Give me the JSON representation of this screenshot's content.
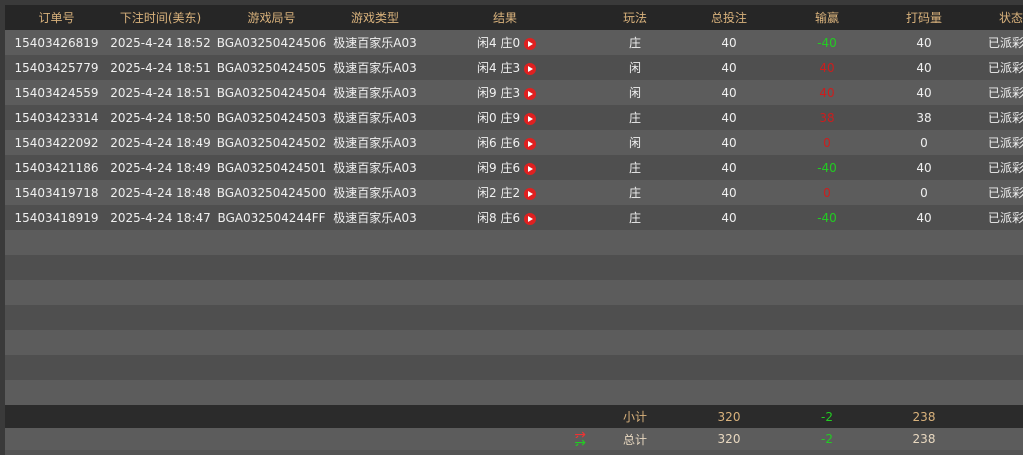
{
  "headers": [
    "订单号",
    "下注时间(美东)",
    "游戏局号",
    "游戏类型",
    "结果",
    "玩法",
    "总投注",
    "输赢",
    "打码量",
    "状态"
  ],
  "rows": [
    {
      "order": "15403426819",
      "time": "2025-4-24 18:52",
      "round": "BGA03250424506",
      "game": "极速百家乐A03",
      "result": "闲4 庄0",
      "bet_type": "庄",
      "total_bet": "40",
      "win_loss": "-40",
      "win_color": "green",
      "turnover": "40",
      "status": "已派彩"
    },
    {
      "order": "15403425779",
      "time": "2025-4-24 18:51",
      "round": "BGA03250424505",
      "game": "极速百家乐A03",
      "result": "闲4 庄3",
      "bet_type": "闲",
      "total_bet": "40",
      "win_loss": "40",
      "win_color": "red",
      "turnover": "40",
      "status": "已派彩"
    },
    {
      "order": "15403424559",
      "time": "2025-4-24 18:51",
      "round": "BGA03250424504",
      "game": "极速百家乐A03",
      "result": "闲9 庄3",
      "bet_type": "闲",
      "total_bet": "40",
      "win_loss": "40",
      "win_color": "red",
      "turnover": "40",
      "status": "已派彩"
    },
    {
      "order": "15403423314",
      "time": "2025-4-24 18:50",
      "round": "BGA03250424503",
      "game": "极速百家乐A03",
      "result": "闲0 庄9",
      "bet_type": "庄",
      "total_bet": "40",
      "win_loss": "38",
      "win_color": "red",
      "turnover": "38",
      "status": "已派彩"
    },
    {
      "order": "15403422092",
      "time": "2025-4-24 18:49",
      "round": "BGA03250424502",
      "game": "极速百家乐A03",
      "result": "闲6 庄6",
      "bet_type": "闲",
      "total_bet": "40",
      "win_loss": "0",
      "win_color": "red",
      "turnover": "0",
      "status": "已派彩"
    },
    {
      "order": "15403421186",
      "time": "2025-4-24 18:49",
      "round": "BGA03250424501",
      "game": "极速百家乐A03",
      "result": "闲9 庄6",
      "bet_type": "庄",
      "total_bet": "40",
      "win_loss": "-40",
      "win_color": "green",
      "turnover": "40",
      "status": "已派彩"
    },
    {
      "order": "15403419718",
      "time": "2025-4-24 18:48",
      "round": "BGA03250424500",
      "game": "极速百家乐A03",
      "result": "闲2 庄2",
      "bet_type": "庄",
      "total_bet": "40",
      "win_loss": "0",
      "win_color": "red",
      "turnover": "0",
      "status": "已派彩"
    },
    {
      "order": "15403418919",
      "time": "2025-4-24 18:47",
      "round": "BGA032504244FF",
      "game": "极速百家乐A03",
      "result": "闲8 庄6",
      "bet_type": "庄",
      "total_bet": "40",
      "win_loss": "-40",
      "win_color": "green",
      "turnover": "40",
      "status": "已派彩"
    }
  ],
  "subtotal": {
    "label": "小计",
    "total_bet": "320",
    "win_loss": "-2",
    "turnover": "238"
  },
  "total": {
    "label": "总计",
    "total_bet": "320",
    "win_loss": "-2",
    "turnover": "238",
    "refresh_icon": "refresh-arrows-icon"
  },
  "colors": {
    "header_text": "#d9b27c",
    "win": "#22cc22",
    "lose": "#cc1d1d"
  }
}
